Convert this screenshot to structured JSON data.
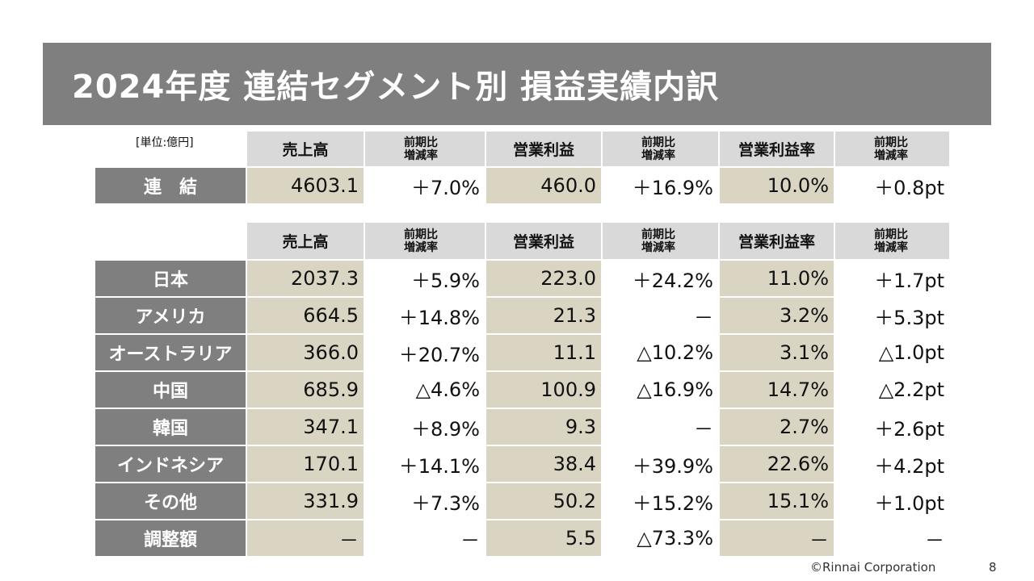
{
  "title": "2024年度 連結セグメント別 損益実績内訳",
  "unit_label": "[単位:億円]",
  "headers": {
    "sales": "売上高",
    "change_line1": "前期比",
    "change_line2": "増減率",
    "op_profit": "営業利益",
    "op_margin": "営業利益率"
  },
  "consolidated": {
    "label": "連　結",
    "sales": "4603.1",
    "sales_chg": "＋7.0%",
    "op": "460.0",
    "op_chg": "＋16.9%",
    "margin": "10.0%",
    "margin_chg": "＋0.8pt"
  },
  "segments": [
    {
      "label": "日本",
      "sales": "2037.3",
      "sales_chg": "＋5.9%",
      "op": "223.0",
      "op_chg": "＋24.2%",
      "margin": "11.0%",
      "margin_chg": "＋1.7pt"
    },
    {
      "label": "アメリカ",
      "sales": "664.5",
      "sales_chg": "＋14.8%",
      "op": "21.3",
      "op_chg": "－",
      "margin": "3.2%",
      "margin_chg": "＋5.3pt"
    },
    {
      "label": "オーストラリア",
      "sales": "366.0",
      "sales_chg": "＋20.7%",
      "op": "11.1",
      "op_chg": "△10.2%",
      "margin": "3.1%",
      "margin_chg": "△1.0pt"
    },
    {
      "label": "中国",
      "sales": "685.9",
      "sales_chg": "△4.6%",
      "op": "100.9",
      "op_chg": "△16.9%",
      "margin": "14.7%",
      "margin_chg": "△2.2pt"
    },
    {
      "label": "韓国",
      "sales": "347.1",
      "sales_chg": "＋8.9%",
      "op": "9.3",
      "op_chg": "－",
      "margin": "2.7%",
      "margin_chg": "＋2.6pt"
    },
    {
      "label": "インドネシア",
      "sales": "170.1",
      "sales_chg": "＋14.1%",
      "op": "38.4",
      "op_chg": "＋39.9%",
      "margin": "22.6%",
      "margin_chg": "＋4.2pt"
    },
    {
      "label": "その他",
      "sales": "331.9",
      "sales_chg": "＋7.3%",
      "op": "50.2",
      "op_chg": "＋15.2%",
      "margin": "15.1%",
      "margin_chg": "＋1.0pt"
    },
    {
      "label": "調整額",
      "sales": "－",
      "sales_chg": "－",
      "op": "5.5",
      "op_chg": "△73.3%",
      "margin": "－",
      "margin_chg": "－"
    }
  ],
  "footer": "©Rinnai Corporation",
  "page_number": "8",
  "colors": {
    "title_bg": "#7f7f7f",
    "row_label_bg": "#7f7f7f",
    "header_bg": "#d9d9d9",
    "value_bg": "#d9d5c2"
  }
}
